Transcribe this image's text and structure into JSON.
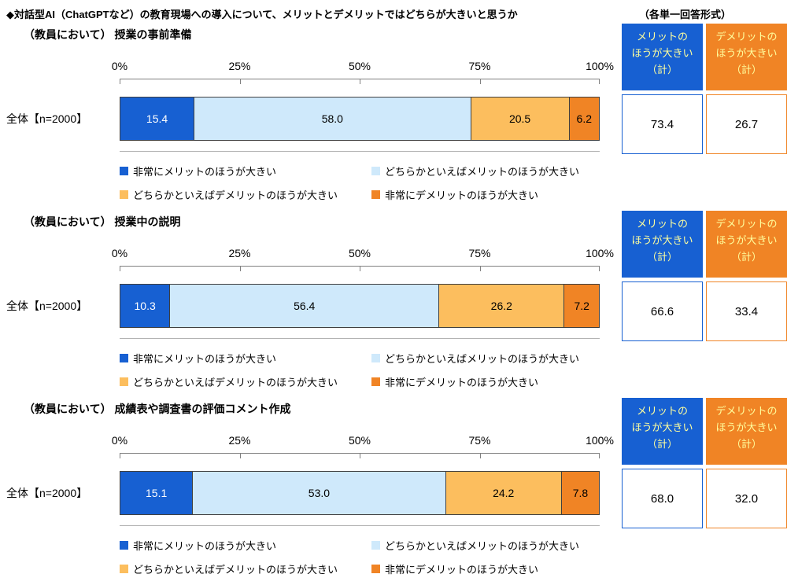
{
  "page": {
    "title": "◆対話型AI（ChatGPTなど）の教育現場への導入について、メリットとデメリットではどちらが大きいと思うか",
    "format_note": "（各単一回答形式）"
  },
  "axis_ticks": [
    "0%",
    "25%",
    "50%",
    "75%",
    "100%"
  ],
  "row_label": "全体【n=2000】",
  "legend": {
    "items": [
      {
        "label": "非常にメリットのほうが大きい",
        "color": "#1760d2"
      },
      {
        "label": "どちらかといえばメリットのほうが大きい",
        "color": "#cfe9fb"
      },
      {
        "label": "どちらかといえばデメリットのほうが大きい",
        "color": "#fcbe5e"
      },
      {
        "label": "非常にデメリットのほうが大きい",
        "color": "#f08425"
      }
    ]
  },
  "summary": {
    "merit_header": [
      "メリットの",
      "ほうが大きい",
      "（計）"
    ],
    "demerit_header": [
      "デメリットの",
      "ほうが大きい",
      "（計）"
    ],
    "merit_color": "#1760d2",
    "demerit_color": "#f08425",
    "header_text_color": "#ffff9e"
  },
  "sections": [
    {
      "title": "（教員において） 授業の事前準備",
      "merit_total": "73.4",
      "demerit_total": "26.7"
    },
    {
      "title": "（教員において） 授業中の説明",
      "merit_total": "66.6",
      "demerit_total": "33.4"
    },
    {
      "title": "（教員において） 成績表や調査書の評価コメント作成",
      "merit_total": "68.0",
      "demerit_total": "32.0"
    }
  ],
  "chart_data": [
    {
      "type": "bar",
      "orientation": "horizontal",
      "stacked": true,
      "title": "（教員において） 授業の事前準備",
      "categories": [
        "全体【n=2000】"
      ],
      "xlim": [
        0,
        100
      ],
      "x_ticks": [
        "0%",
        "25%",
        "50%",
        "75%",
        "100%"
      ],
      "legend_position": "bottom",
      "series": [
        {
          "name": "非常にメリットのほうが大きい",
          "values": [
            15.4
          ],
          "color": "#1760d2",
          "label_color": "#ffffff"
        },
        {
          "name": "どちらかといえばメリットのほうが大きい",
          "values": [
            58.0
          ],
          "color": "#cfe9fb",
          "label_color": "#000000"
        },
        {
          "name": "どちらかといえばデメリットのほうが大きい",
          "values": [
            20.5
          ],
          "color": "#fcbe5e",
          "label_color": "#000000"
        },
        {
          "name": "非常にデメリットのほうが大きい",
          "values": [
            6.2
          ],
          "color": "#f08425",
          "label_color": "#000000"
        }
      ],
      "totals": {
        "merit": 73.4,
        "demerit": 26.7
      }
    },
    {
      "type": "bar",
      "orientation": "horizontal",
      "stacked": true,
      "title": "（教員において） 授業中の説明",
      "categories": [
        "全体【n=2000】"
      ],
      "xlim": [
        0,
        100
      ],
      "x_ticks": [
        "0%",
        "25%",
        "50%",
        "75%",
        "100%"
      ],
      "legend_position": "bottom",
      "series": [
        {
          "name": "非常にメリットのほうが大きい",
          "values": [
            10.3
          ],
          "color": "#1760d2",
          "label_color": "#ffffff"
        },
        {
          "name": "どちらかといえばメリットのほうが大きい",
          "values": [
            56.4
          ],
          "color": "#cfe9fb",
          "label_color": "#000000"
        },
        {
          "name": "どちらかといえばデメリットのほうが大きい",
          "values": [
            26.2
          ],
          "color": "#fcbe5e",
          "label_color": "#000000"
        },
        {
          "name": "非常にデメリットのほうが大きい",
          "values": [
            7.2
          ],
          "color": "#f08425",
          "label_color": "#000000"
        }
      ],
      "totals": {
        "merit": 66.6,
        "demerit": 33.4
      }
    },
    {
      "type": "bar",
      "orientation": "horizontal",
      "stacked": true,
      "title": "（教員において） 成績表や調査書の評価コメント作成",
      "categories": [
        "全体【n=2000】"
      ],
      "xlim": [
        0,
        100
      ],
      "x_ticks": [
        "0%",
        "25%",
        "50%",
        "75%",
        "100%"
      ],
      "legend_position": "bottom",
      "series": [
        {
          "name": "非常にメリットのほうが大きい",
          "values": [
            15.1
          ],
          "color": "#1760d2",
          "label_color": "#ffffff"
        },
        {
          "name": "どちらかといえばメリットのほうが大きい",
          "values": [
            53.0
          ],
          "color": "#cfe9fb",
          "label_color": "#000000"
        },
        {
          "name": "どちらかといえばデメリットのほうが大きい",
          "values": [
            24.2
          ],
          "color": "#fcbe5e",
          "label_color": "#000000"
        },
        {
          "name": "非常にデメリットのほうが大きい",
          "values": [
            7.8
          ],
          "color": "#f08425",
          "label_color": "#000000"
        }
      ],
      "totals": {
        "merit": 68.0,
        "demerit": 32.0
      }
    }
  ]
}
